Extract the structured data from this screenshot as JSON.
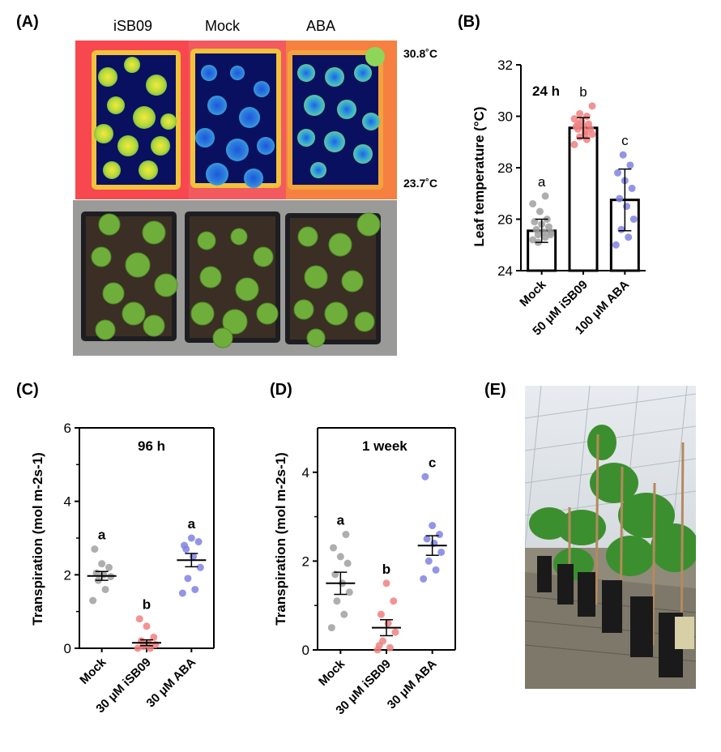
{
  "figure": {
    "panel_labels": {
      "A": "(A)",
      "B": "(B)",
      "C": "(C)",
      "D": "(D)",
      "E": "(E)"
    },
    "panel_A": {
      "column_labels": [
        "iSB09",
        "Mock",
        "ABA"
      ],
      "scale_max": "30.8˚C",
      "scale_min": "23.7˚C"
    }
  },
  "chart_data": [
    {
      "id": "B",
      "type": "bar",
      "annotation": "24 h",
      "ylabel": "Leaf temperature (°C)",
      "ylim": [
        24,
        32
      ],
      "yticks": [
        24,
        26,
        28,
        30,
        32
      ],
      "categories": [
        "Mock",
        "50 μM iSB09",
        "100 μM ABA"
      ],
      "means": [
        25.55,
        29.55,
        26.75
      ],
      "errors": [
        0.45,
        0.4,
        1.2
      ],
      "letters": [
        "a",
        "b",
        "c"
      ],
      "colors": [
        "#a0a0a0",
        "#f08080",
        "#7f83e3"
      ],
      "points": [
        [
          25.2,
          25.3,
          25.4,
          25.5,
          25.5,
          25.6,
          25.7,
          25.8,
          25.9,
          26.0,
          26.3,
          26.6,
          26.9,
          25.1,
          25.4
        ],
        [
          28.9,
          29.1,
          29.2,
          29.3,
          29.4,
          29.5,
          29.5,
          29.6,
          29.6,
          29.7,
          29.8,
          29.9,
          30.0,
          30.1,
          30.4,
          29.3,
          29.7
        ],
        [
          25.0,
          25.3,
          25.6,
          26.0,
          26.5,
          26.8,
          27.2,
          27.5,
          27.8,
          28.1,
          28.5
        ]
      ]
    },
    {
      "id": "C",
      "type": "scatter",
      "annotation": "96 h",
      "ylabel": "Transpiration (mol m-2s-1)",
      "ylim": [
        0,
        6
      ],
      "yticks": [
        0,
        2,
        4,
        6
      ],
      "categories": [
        "Mock",
        "30 μM iSB09",
        "30 μM ABA"
      ],
      "means": [
        1.97,
        0.15,
        2.4
      ],
      "errors": [
        0.12,
        0.08,
        0.18
      ],
      "letters": [
        "a",
        "b",
        "a"
      ],
      "colors": [
        "#a0a0a0",
        "#f08080",
        "#7f83e3"
      ],
      "points": [
        [
          1.3,
          1.6,
          1.85,
          1.95,
          2.0,
          2.05,
          2.2,
          2.3,
          2.7
        ],
        [
          0.0,
          0.0,
          0.05,
          0.1,
          0.15,
          0.2,
          0.3,
          0.6,
          0.8
        ],
        [
          1.5,
          1.6,
          1.9,
          2.2,
          2.5,
          2.7,
          2.9,
          3.0,
          2.8
        ]
      ]
    },
    {
      "id": "D",
      "type": "scatter",
      "annotation": "1  week",
      "ylabel": "Transpiration (mol m-2s-1)",
      "ylim": [
        0,
        5
      ],
      "yticks": [
        0,
        2,
        4
      ],
      "categories": [
        "Mock",
        "30 μM iSB09",
        "30 μM ABA"
      ],
      "means": [
        1.5,
        0.5,
        2.35
      ],
      "errors": [
        0.25,
        0.18,
        0.22
      ],
      "letters": [
        "a",
        "b",
        "c"
      ],
      "colors": [
        "#a0a0a0",
        "#f08080",
        "#7f83e3"
      ],
      "points": [
        [
          0.5,
          0.8,
          1.1,
          1.3,
          1.5,
          1.7,
          1.95,
          2.1,
          2.3,
          2.6
        ],
        [
          0.0,
          0.05,
          0.2,
          0.4,
          0.6,
          0.8,
          1.1,
          1.5,
          0.1
        ],
        [
          1.6,
          1.8,
          2.0,
          2.2,
          2.4,
          2.5,
          2.6,
          2.8,
          3.9
        ]
      ]
    }
  ]
}
